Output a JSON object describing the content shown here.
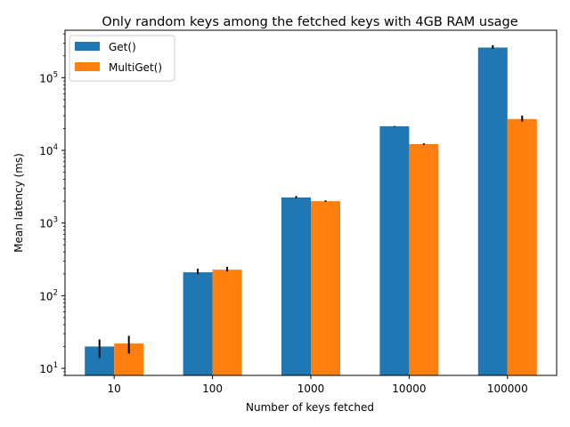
{
  "chart_data": {
    "type": "bar",
    "title": "Only random keys among the fetched keys with 4GB RAM usage",
    "xlabel": "Number of keys fetched",
    "ylabel": "Mean latency (ms)",
    "y_scale": "log",
    "ylim": [
      8,
      450000
    ],
    "y_ticks": [
      {
        "value": 10,
        "base": "10",
        "exp": "1"
      },
      {
        "value": 100,
        "base": "10",
        "exp": "2"
      },
      {
        "value": 1000,
        "base": "10",
        "exp": "3"
      },
      {
        "value": 10000,
        "base": "10",
        "exp": "4"
      },
      {
        "value": 100000,
        "base": "10",
        "exp": "5"
      }
    ],
    "categories": [
      "10",
      "100",
      "1000",
      "10000",
      "100000"
    ],
    "series": [
      {
        "name": "Get()",
        "color": "#1f77b4",
        "values": [
          20,
          210,
          2250,
          21500,
          260000
        ],
        "err_low": [
          14,
          198,
          2200,
          21300,
          250000
        ],
        "err_high": [
          25,
          235,
          2350,
          21700,
          280000
        ]
      },
      {
        "name": "MultiGet()",
        "color": "#ff7f0e",
        "values": [
          22,
          228,
          2000,
          12200,
          27000
        ],
        "err_low": [
          16,
          215,
          1960,
          11900,
          25000
        ],
        "err_high": [
          28,
          250,
          2050,
          12500,
          30000
        ]
      }
    ],
    "legend": {
      "position": "top-left"
    },
    "grid": false
  }
}
